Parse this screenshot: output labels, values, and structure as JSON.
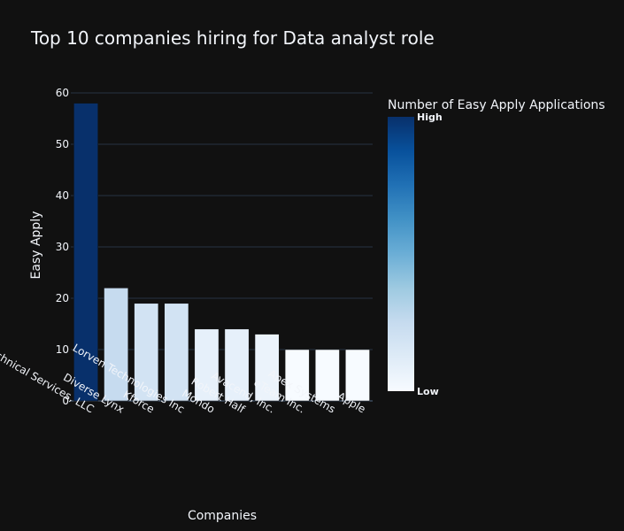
{
  "chart_data": {
    "type": "bar",
    "title": "Top 10 companies hiring for Data analyst role",
    "xlabel": "Companies",
    "ylabel": "Easy Apply",
    "categories": [
      "Staffigo Technical Services, LLC",
      "Diverse Lynx",
      "Kforce",
      "Lorven Technologies Inc",
      "Mondo",
      "Robert Half",
      "Avacend, Inc.",
      "eTeam Inc.",
      "Apex Systems",
      "Apple"
    ],
    "values": [
      58,
      22,
      19,
      19,
      14,
      14,
      13,
      10,
      10,
      10
    ],
    "ylim": [
      0,
      60
    ],
    "yticks": [
      "0",
      "10",
      "20",
      "30",
      "40",
      "50",
      "60"
    ],
    "ytick_values": [
      0,
      10,
      20,
      30,
      40,
      50,
      60
    ],
    "grid": true,
    "colorbar": {
      "title": "Number of Easy Apply Applications",
      "high_label": "High",
      "low_label": "Low",
      "colorscale": [
        "#f7fbff",
        "#deebf7",
        "#c6dbef",
        "#9ecae1",
        "#6baed6",
        "#4292c6",
        "#2171b5",
        "#08519c",
        "#08306b"
      ]
    },
    "colors": {
      "background": "#111111",
      "grid": "#283442",
      "text": "#f2f5fa"
    }
  }
}
